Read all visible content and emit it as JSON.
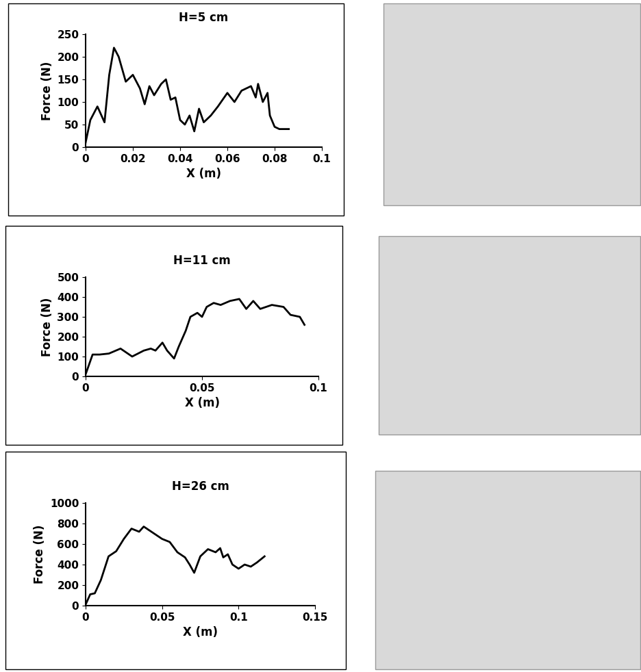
{
  "chart_data": [
    {
      "type": "line",
      "title": "H=5 cm",
      "x_label": "X (m)",
      "y_label": "Force (N)",
      "color": "#000000",
      "x": [
        0,
        0.002,
        0.005,
        0.008,
        0.01,
        0.012,
        0.014,
        0.017,
        0.02,
        0.023,
        0.025,
        0.027,
        0.029,
        0.032,
        0.034,
        0.036,
        0.038,
        0.04,
        0.042,
        0.044,
        0.046,
        0.048,
        0.05,
        0.053,
        0.056,
        0.06,
        0.063,
        0.066,
        0.068,
        0.07,
        0.072,
        0.073,
        0.075,
        0.077,
        0.078,
        0.08,
        0.082,
        0.086
      ],
      "values": [
        10,
        60,
        90,
        55,
        160,
        220,
        200,
        145,
        160,
        130,
        95,
        135,
        115,
        140,
        150,
        105,
        110,
        60,
        50,
        70,
        35,
        85,
        55,
        70,
        90,
        120,
        100,
        125,
        130,
        135,
        110,
        140,
        100,
        120,
        70,
        45,
        40,
        40
      ],
      "xlim": [
        0,
        0.1
      ],
      "xticks": [
        0,
        0.02,
        0.04,
        0.06,
        0.08,
        0.1
      ],
      "ylim": [
        0,
        250
      ],
      "yticks": [
        0,
        50,
        100,
        150,
        200,
        250
      ],
      "grid": false
    },
    {
      "type": "line",
      "title": "H=11 cm",
      "x_label": "X (m)",
      "y_label": "Force (N)",
      "color": "#000000",
      "x": [
        0,
        0.003,
        0.006,
        0.01,
        0.015,
        0.02,
        0.025,
        0.028,
        0.03,
        0.033,
        0.035,
        0.038,
        0.04,
        0.043,
        0.045,
        0.048,
        0.05,
        0.052,
        0.055,
        0.058,
        0.062,
        0.066,
        0.069,
        0.072,
        0.075,
        0.08,
        0.085,
        0.088,
        0.092,
        0.094
      ],
      "values": [
        10,
        110,
        110,
        115,
        140,
        100,
        130,
        140,
        130,
        170,
        130,
        90,
        150,
        230,
        300,
        320,
        300,
        350,
        370,
        360,
        380,
        390,
        340,
        380,
        340,
        360,
        350,
        310,
        300,
        260
      ],
      "xlim": [
        0,
        0.1
      ],
      "xticks": [
        0,
        0.05,
        0.1
      ],
      "ylim": [
        0,
        500
      ],
      "yticks": [
        0,
        100,
        200,
        300,
        400,
        500
      ],
      "grid": false
    },
    {
      "type": "line",
      "title": "H=26 cm",
      "x_label": "X (m)",
      "y_label": "Force (N)",
      "color": "#000000",
      "x": [
        0,
        0.003,
        0.006,
        0.01,
        0.015,
        0.02,
        0.025,
        0.03,
        0.035,
        0.038,
        0.041,
        0.045,
        0.05,
        0.055,
        0.06,
        0.065,
        0.068,
        0.071,
        0.075,
        0.08,
        0.085,
        0.088,
        0.09,
        0.093,
        0.096,
        0.1,
        0.104,
        0.108,
        0.112,
        0.117
      ],
      "values": [
        10,
        110,
        120,
        250,
        480,
        530,
        650,
        750,
        720,
        770,
        740,
        700,
        650,
        620,
        520,
        470,
        400,
        320,
        480,
        550,
        520,
        560,
        470,
        500,
        400,
        360,
        400,
        380,
        420,
        480
      ],
      "xlim": [
        0,
        0.15
      ],
      "xticks": [
        0,
        0.05,
        0.1,
        0.15
      ],
      "ylim": [
        0,
        1000
      ],
      "yticks": [
        0,
        200,
        400,
        600,
        800,
        1000
      ],
      "grid": false
    }
  ]
}
